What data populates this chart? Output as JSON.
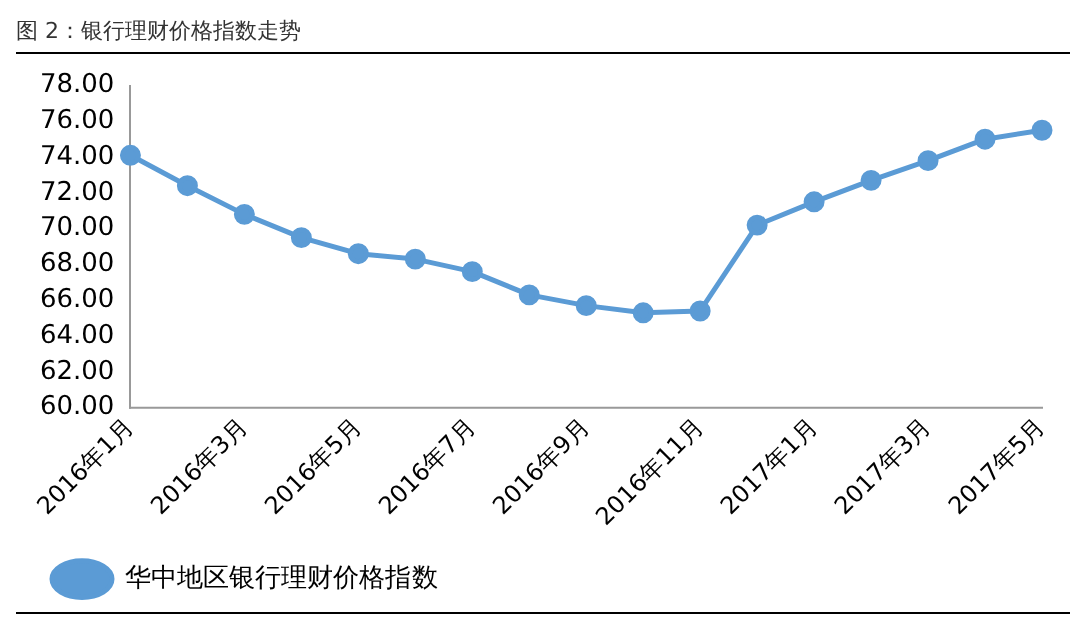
{
  "chart_data": {
    "type": "line",
    "title": "图 2：银行理财价格指数走势",
    "categories": [
      "2016年1月",
      null,
      "2016年3月",
      null,
      "2016年5月",
      null,
      "2016年7月",
      null,
      "2016年9月",
      null,
      "2016年11月",
      null,
      "2017年1月",
      null,
      "2017年3月",
      null,
      "2017年5月"
    ],
    "series": [
      {
        "name": "华中地区银行理财价格指数",
        "color": "#5b9bd5",
        "values": [
          74.1,
          72.4,
          70.8,
          69.5,
          68.6,
          68.3,
          67.6,
          66.3,
          65.7,
          65.3,
          65.4,
          70.2,
          71.5,
          72.7,
          73.8,
          75.0,
          75.5
        ]
      }
    ],
    "ylim": [
      60,
      78
    ],
    "yticks": [
      {
        "value": 60,
        "label": "60.00"
      },
      {
        "value": 62,
        "label": "62.00"
      },
      {
        "value": 64,
        "label": "64.00"
      },
      {
        "value": 66,
        "label": "66.00"
      },
      {
        "value": 68,
        "label": "68.00"
      },
      {
        "value": 70,
        "label": "70.00"
      },
      {
        "value": 72,
        "label": "72.00"
      },
      {
        "value": 74,
        "label": "74.00"
      },
      {
        "value": 76,
        "label": "76.00"
      },
      {
        "value": 78,
        "label": "78.00"
      }
    ],
    "grid": false,
    "legend": "bottom left",
    "marker": "circle",
    "line_style": "solid"
  }
}
